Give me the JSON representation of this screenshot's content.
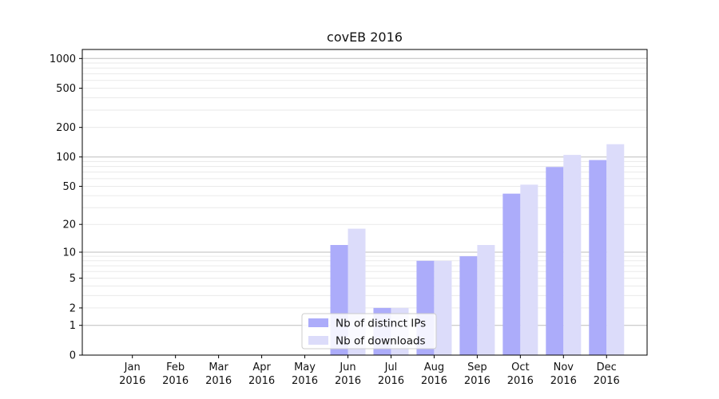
{
  "chart_data": {
    "type": "bar",
    "title": "covEB 2016",
    "scale": "log1p",
    "grid": true,
    "legend_position": "lower center",
    "categories": [
      "Jan",
      "Feb",
      "Mar",
      "Apr",
      "May",
      "Jun",
      "Jul",
      "Aug",
      "Sep",
      "Oct",
      "Nov",
      "Dec"
    ],
    "year_label": "2016",
    "series": [
      {
        "name": "Nb of distinct IPs",
        "color": "#acacfa",
        "values": [
          0,
          0,
          0,
          0,
          0,
          12,
          2,
          8,
          9,
          42,
          79,
          93
        ]
      },
      {
        "name": "Nb of downloads",
        "color": "#dcdcfa",
        "values": [
          0,
          0,
          0,
          0,
          0,
          18,
          2,
          8,
          12,
          52,
          105,
          135
        ]
      }
    ],
    "yticks": [
      1000,
      500,
      200,
      100,
      50,
      20,
      10,
      5,
      2,
      1,
      0
    ],
    "ylim": [
      0,
      1230
    ],
    "xlabel": "",
    "ylabel": "",
    "colors": {
      "major_grid": "#bdbdbd",
      "minor_grid": "#eaeaea",
      "spine": "#000000",
      "legend_border": "#cccccc"
    }
  }
}
